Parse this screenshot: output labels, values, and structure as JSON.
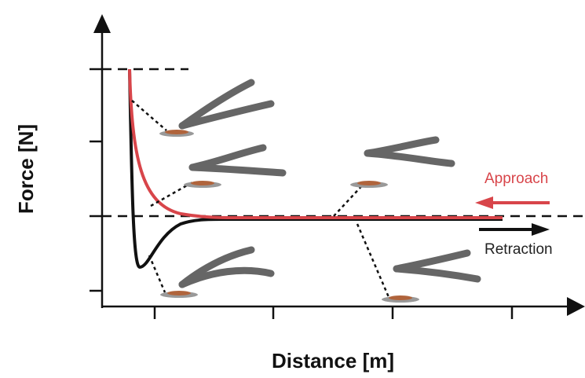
{
  "axes": {
    "y_label": "Force [N]",
    "x_label": "Distance [m]"
  },
  "legend": {
    "approach": "Approach",
    "retraction": "Retraction"
  }
}
